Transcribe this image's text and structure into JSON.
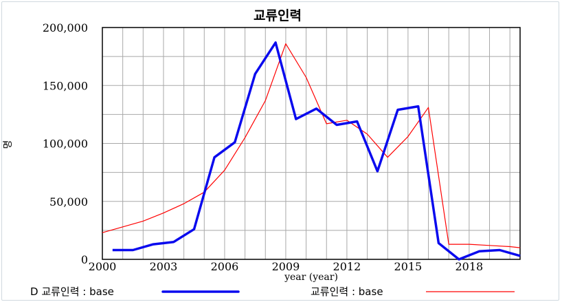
{
  "chart_data": {
    "type": "line",
    "title": "교류인력",
    "xlabel": "year (year)",
    "ylabel": "명",
    "xlim": [
      2000,
      2020.5
    ],
    "ylim": [
      0,
      200000
    ],
    "x_ticks": [
      2000,
      2003,
      2006,
      2009,
      2012,
      2015,
      2018
    ],
    "x_tick_labels": [
      "2000",
      "2003",
      "2006",
      "2009",
      "2012",
      "2015",
      "2018"
    ],
    "y_ticks": [
      0,
      50000,
      100000,
      150000,
      200000
    ],
    "y_tick_labels": [
      "0",
      "50,000",
      "100,000",
      "150,000",
      "200,000"
    ],
    "grid": true,
    "legend_position": "bottom",
    "series": [
      {
        "name": "D 교류인력 : base",
        "color": "#0a0aee",
        "style": "thick",
        "x": [
          2000.5,
          2001.5,
          2002.5,
          2003.5,
          2004.5,
          2005.5,
          2006.5,
          2007.5,
          2008.5,
          2009.5,
          2010.5,
          2011.5,
          2012.5,
          2013.5,
          2014.5,
          2015.5,
          2016.5,
          2017.5,
          2018.5,
          2019.5,
          2020.5
        ],
        "y": [
          8000,
          8000,
          13000,
          15000,
          26000,
          88000,
          101000,
          160000,
          187000,
          121000,
          130000,
          116000,
          119000,
          76000,
          129000,
          132000,
          14000,
          0,
          7000,
          8000,
          3000
        ]
      },
      {
        "name": "교류인력 : base",
        "color": "#ff0000",
        "style": "thin",
        "x": [
          2000,
          2001,
          2002,
          2003,
          2004,
          2005,
          2006,
          2007,
          2008,
          2009,
          2010,
          2011,
          2012,
          2013,
          2014,
          2015,
          2016,
          2017,
          2018,
          2019,
          2020,
          2020.5
        ],
        "y": [
          23000,
          28000,
          33000,
          40000,
          48000,
          58000,
          77000,
          105000,
          137000,
          186000,
          157000,
          117000,
          120000,
          108000,
          88000,
          106000,
          131000,
          13000,
          13000,
          12000,
          11000,
          10000
        ]
      }
    ]
  }
}
